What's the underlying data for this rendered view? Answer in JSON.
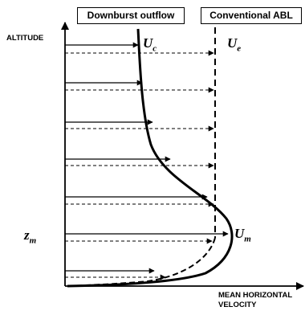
{
  "legend": {
    "downburst_outflow": "Downburst outflow",
    "conventional_abl": "Conventional ABL"
  },
  "axes": {
    "y_label": "ALTITUDE",
    "x_label_line1": "MEAN HORIZONTAL",
    "x_label_line2": "VELOCITY"
  },
  "symbols": {
    "uc_main": "U",
    "uc_sub": "c",
    "ue_main": "U",
    "ue_sub": "e",
    "um_main": "U",
    "um_sub": "m",
    "zm_main": "z",
    "zm_sub": "m"
  },
  "colors": {
    "line": "#000000",
    "background": "#ffffff"
  }
}
